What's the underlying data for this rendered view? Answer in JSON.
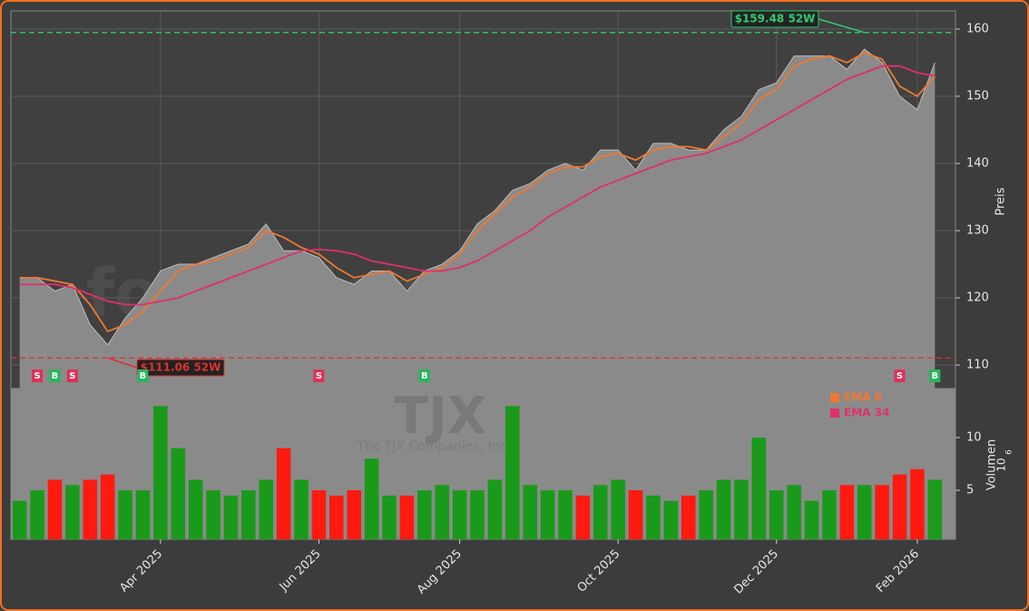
{
  "chart_data": {
    "type": "price-volume",
    "watermark": "forexsignale.trade",
    "ticker": "TJX",
    "company": "The TJX Companies, Inc.",
    "categories": [
      null,
      null,
      null,
      null,
      null,
      null,
      null,
      null,
      "Apr 2025",
      null,
      null,
      null,
      null,
      null,
      null,
      null,
      null,
      "Jun 2025",
      null,
      null,
      null,
      null,
      null,
      null,
      null,
      "Aug 2025",
      null,
      null,
      null,
      null,
      null,
      null,
      null,
      null,
      "Oct 2025",
      null,
      null,
      null,
      null,
      null,
      null,
      null,
      null,
      "Dec 2025",
      null,
      null,
      null,
      null,
      null,
      null,
      null,
      "Feb 2026",
      null
    ],
    "close": [
      123,
      123,
      121,
      122,
      116,
      113,
      117,
      120,
      124,
      125,
      125,
      126,
      127,
      128,
      131,
      127,
      127,
      126,
      123,
      122,
      124,
      124,
      121,
      124,
      125,
      127,
      131,
      133,
      136,
      137,
      139,
      140,
      139,
      142,
      142,
      139,
      143,
      143,
      142,
      142,
      145,
      147,
      151,
      152,
      156,
      156,
      156,
      154,
      157,
      155,
      150,
      148,
      155
    ],
    "close_color": "#8a8a8a",
    "series": [
      {
        "name": "EMA 8",
        "color": "#f07830",
        "values": [
          123,
          123,
          122.5,
          122,
          119,
          115,
          116,
          118,
          121,
          124,
          125,
          125.5,
          126.5,
          127.5,
          130,
          129,
          127.5,
          126.5,
          124.5,
          123,
          123.5,
          124,
          122.5,
          123.5,
          124.5,
          126.5,
          130,
          132.5,
          135,
          136.5,
          138.5,
          139.5,
          139.5,
          141,
          141.5,
          140.5,
          142,
          142.5,
          142.5,
          142,
          144,
          146,
          149.5,
          151,
          154.5,
          155.5,
          156,
          155,
          156.5,
          155.5,
          151.5,
          150,
          153
        ]
      },
      {
        "name": "EMA 34",
        "color": "#e0306a",
        "values": [
          122,
          122,
          122,
          121.5,
          120.5,
          119.5,
          119,
          119,
          119.5,
          120,
          121,
          122,
          123,
          124,
          125,
          126,
          127,
          127.2,
          127,
          126.5,
          125.5,
          125,
          124.5,
          124,
          124,
          124.5,
          125.5,
          127,
          128.5,
          130,
          132,
          133.5,
          135,
          136.5,
          137.5,
          138.5,
          139.5,
          140.5,
          141,
          141.5,
          142.5,
          143.5,
          145,
          146.5,
          148,
          149.5,
          151,
          152.5,
          153.5,
          154.5,
          154.5,
          153.5,
          153
        ]
      }
    ],
    "ylabel": "Preis",
    "ylim": [
      106.5,
      162.7
    ],
    "yticks": [
      110,
      120,
      130,
      140,
      150,
      160
    ],
    "grid": true,
    "high": {
      "value": 159.48,
      "label": "$159.48 52W",
      "color": "#2ecc71"
    },
    "low": {
      "value": 111.06,
      "label": "$111.06 52W",
      "color": "#e03030"
    },
    "signals": [
      {
        "index": 1,
        "label": "S"
      },
      {
        "index": 2,
        "label": "B"
      },
      {
        "index": 3,
        "label": "S"
      },
      {
        "index": 7,
        "label": "B"
      },
      {
        "index": 17,
        "label": "S"
      },
      {
        "index": 23,
        "label": "B"
      },
      {
        "index": 50,
        "label": "S"
      },
      {
        "index": 52,
        "label": "B"
      }
    ],
    "volume": {
      "ylabel": "Volumen",
      "scale_base": "10",
      "scale_exponent": "6",
      "values": [
        4,
        5,
        6,
        5.5,
        6,
        6.5,
        5,
        5,
        13,
        9,
        6,
        5,
        4.5,
        5,
        6,
        9,
        6,
        5,
        4.5,
        5,
        8,
        4.5,
        4.5,
        5,
        5.5,
        5,
        5,
        6,
        13,
        5.5,
        5,
        5,
        4.5,
        5.5,
        6,
        5,
        4.5,
        4,
        4.5,
        5,
        6,
        6,
        10,
        5,
        5.5,
        4,
        5,
        5.5,
        5.5,
        5.5,
        6.5,
        7,
        6
      ],
      "up_color": "#1a9a1a",
      "down_color": "#ff1a10",
      "ylim": [
        0.35,
        14.66
      ],
      "yticks": [
        5,
        10
      ]
    }
  }
}
